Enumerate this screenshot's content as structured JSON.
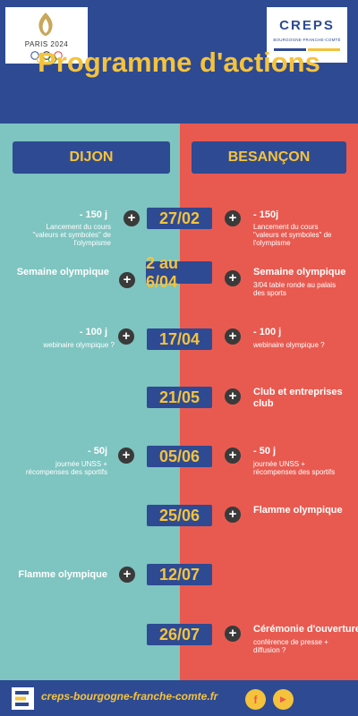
{
  "header": {
    "title": "Programme d'actions",
    "paris_logo_text": "PARIS 2024",
    "creps_logo_title": "CREPS",
    "creps_logo_subtitle": "BOURGOGNE-FRANCHE-COMTÉ"
  },
  "columns": {
    "left_city": "DIJON",
    "right_city": "BESANÇON"
  },
  "events": [
    {
      "date": "27/02",
      "left_big": "- 150 j",
      "left_small": "Lancement du cours \"valeurs et symboles\" de l'olympisme",
      "right_big": "- 150j",
      "right_small": "Lancement du cours \"valeurs et symboles\" de l'olympisme"
    },
    {
      "date": "2 au 6/04",
      "left_big": "Semaine olympique",
      "left_small": "",
      "right_big": "Semaine olympique",
      "right_small": "3/04 table ronde au palais des sports"
    },
    {
      "date": "17/04",
      "left_big": "- 100 j",
      "left_small": "webinaire olympique ?",
      "right_big": "- 100 j",
      "right_small": "webinaire olympique ?"
    },
    {
      "date": "21/05",
      "left_big": "",
      "left_small": "",
      "right_big": "Club et entreprises club",
      "right_small": ""
    },
    {
      "date": "05/06",
      "left_big": "- 50j",
      "left_small": "journée UNSS + récompenses des sportifs",
      "right_big": "- 50 j",
      "right_small": "journée UNSS + récompenses des sportifs"
    },
    {
      "date": "25/06",
      "left_big": "",
      "left_small": "",
      "right_big": "Flamme olympique",
      "right_small": ""
    },
    {
      "date": "12/07",
      "left_big": "Flamme olympique",
      "left_small": "",
      "right_big": "",
      "right_small": ""
    },
    {
      "date": "26/07",
      "left_big": "",
      "left_small": "",
      "right_big": "Cérémonie d'ouverture",
      "right_small": "conférence de presse + diffusion ?"
    }
  ],
  "plus_symbol": "+",
  "footer": {
    "url": "creps-bourgogne-franche-comte.fr",
    "facebook_glyph": "f",
    "youtube_glyph": "▶"
  },
  "colors": {
    "navy": "#2e4a93",
    "gold": "#f5c33b",
    "teal": "#7ec4c0",
    "coral": "#e85a50"
  }
}
